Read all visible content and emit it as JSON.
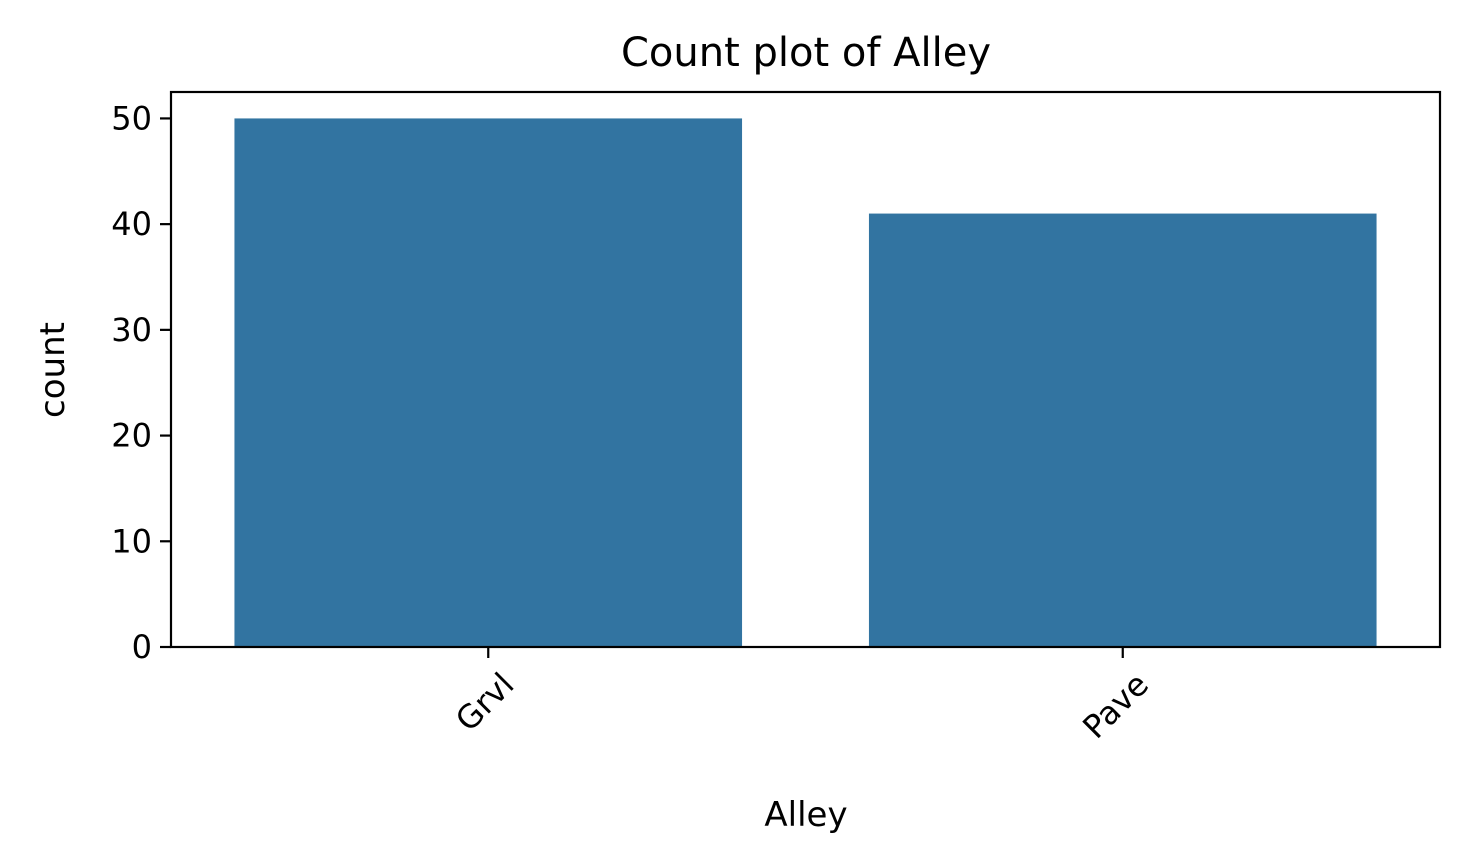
{
  "chart_data": {
    "type": "bar",
    "title": "Count plot of Alley",
    "xlabel": "Alley",
    "ylabel": "count",
    "categories": [
      "Grvl",
      "Pave"
    ],
    "values": [
      50,
      41
    ],
    "ylim": [
      0,
      52.5
    ],
    "yticks": [
      "0",
      "10",
      "20",
      "30",
      "40",
      "50"
    ],
    "xtick_rotation_deg": 45,
    "grid": false,
    "bar_color": "#3274a1"
  }
}
